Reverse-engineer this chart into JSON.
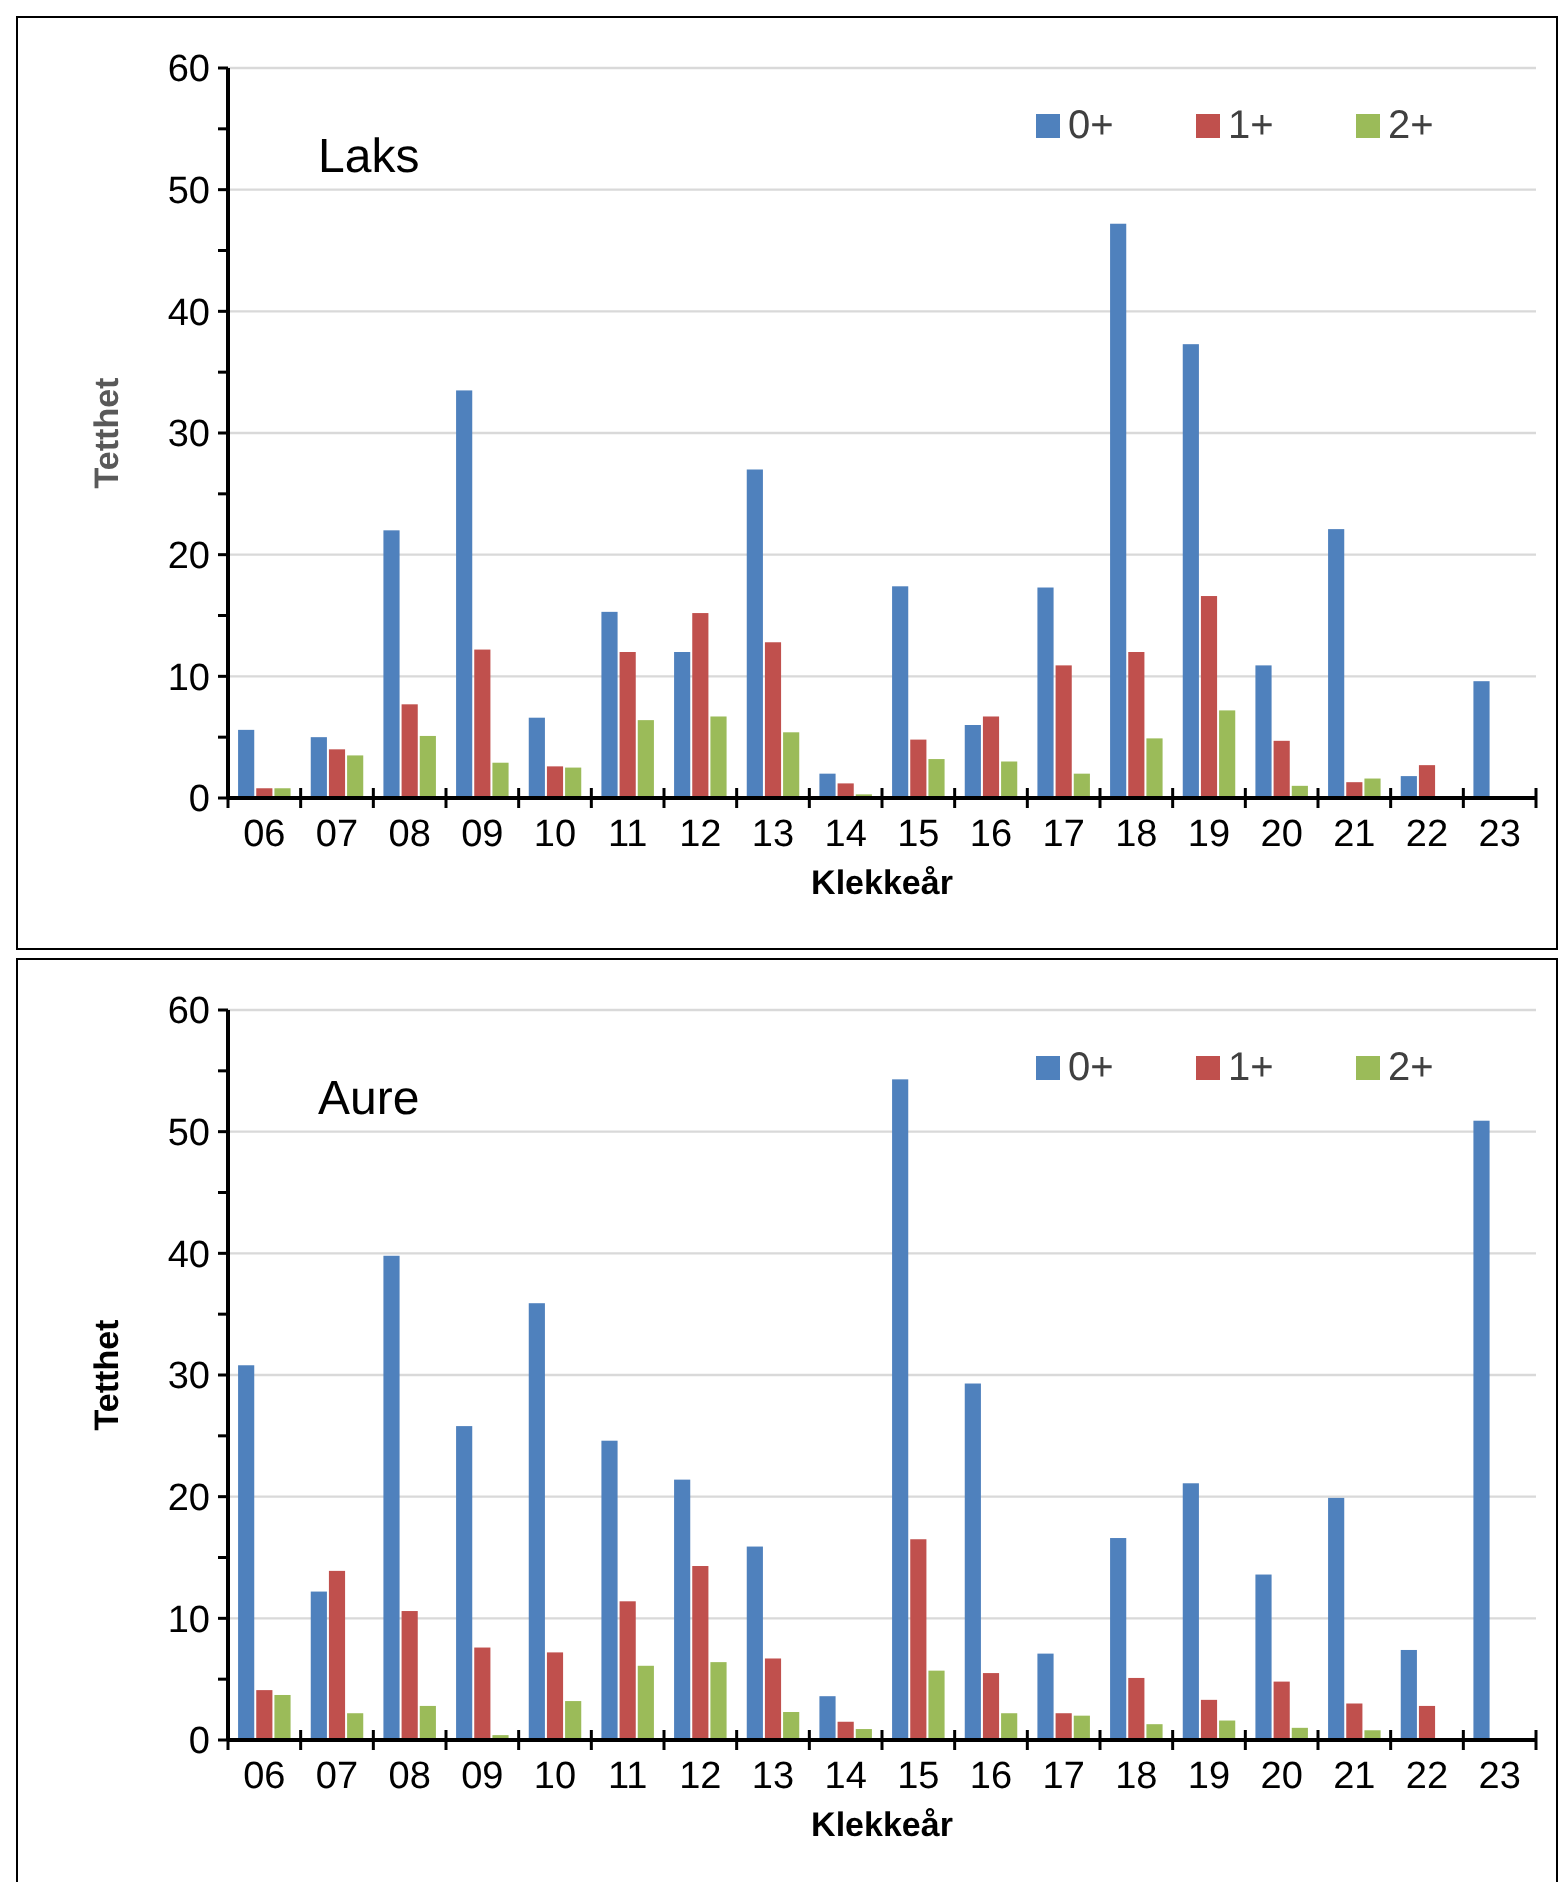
{
  "chart_data": [
    {
      "type": "bar",
      "title": "Laks",
      "xlabel": "Klekkeår",
      "ylabel": "Tetthet",
      "categories": [
        "06",
        "07",
        "08",
        "09",
        "10",
        "11",
        "12",
        "13",
        "14",
        "15",
        "16",
        "17",
        "18",
        "19",
        "20",
        "21",
        "22",
        "23"
      ],
      "series": [
        {
          "name": "0+",
          "color": "#4f81bd",
          "values": [
            5.6,
            5.0,
            22,
            33.5,
            6.6,
            15.3,
            12.0,
            27,
            2.0,
            17.4,
            6.0,
            17.3,
            47.2,
            37.3,
            10.9,
            22.1,
            1.8,
            9.6
          ]
        },
        {
          "name": "1+",
          "color": "#c0504d",
          "values": [
            0.8,
            4.0,
            7.7,
            12.2,
            2.6,
            12.0,
            15.2,
            12.8,
            1.2,
            4.8,
            6.7,
            10.9,
            12.0,
            16.6,
            4.7,
            1.3,
            2.7,
            null
          ]
        },
        {
          "name": "2+",
          "color": "#9bbb59",
          "values": [
            0.8,
            3.5,
            5.1,
            2.9,
            2.5,
            6.4,
            6.7,
            5.4,
            0.3,
            3.2,
            3.0,
            2.0,
            4.9,
            7.2,
            1.0,
            1.6,
            null,
            null
          ]
        }
      ],
      "ylim": [
        0,
        60
      ],
      "yticks": [
        0,
        {
          "value": 5,
          "label": null
        },
        10,
        {
          "value": 15,
          "label": null
        },
        20,
        {
          "value": 25,
          "label": null
        },
        30,
        {
          "value": 35,
          "label": null
        },
        40,
        {
          "value": 45,
          "label": null
        },
        50,
        {
          "value": 55,
          "label": null
        },
        60
      ],
      "grid": "y",
      "legend": "top right"
    },
    {
      "type": "bar",
      "title": "Aure",
      "xlabel": "Klekkeår",
      "ylabel": "Tetthet",
      "categories": [
        "06",
        "07",
        "08",
        "09",
        "10",
        "11",
        "12",
        "13",
        "14",
        "15",
        "16",
        "17",
        "18",
        "19",
        "20",
        "21",
        "22",
        "23"
      ],
      "series": [
        {
          "name": "0+",
          "color": "#4f81bd",
          "values": [
            30.8,
            12.2,
            39.8,
            25.8,
            35.9,
            24.6,
            21.4,
            15.9,
            3.6,
            54.3,
            29.3,
            7.1,
            16.6,
            21.1,
            13.6,
            19.9,
            7.4,
            50.9
          ]
        },
        {
          "name": "1+",
          "color": "#c0504d",
          "values": [
            4.1,
            13.9,
            10.6,
            7.6,
            7.2,
            11.4,
            14.3,
            6.7,
            1.5,
            16.5,
            5.5,
            2.2,
            5.1,
            3.3,
            4.8,
            3.0,
            2.8,
            null
          ]
        },
        {
          "name": "2+",
          "color": "#9bbb59",
          "values": [
            3.7,
            2.2,
            2.8,
            0.4,
            3.2,
            6.1,
            6.4,
            2.3,
            0.9,
            5.7,
            2.2,
            2.0,
            1.3,
            1.6,
            1.0,
            0.8,
            null,
            null
          ]
        }
      ],
      "ylim": [
        0,
        60
      ],
      "yticks": [
        0,
        {
          "value": 5,
          "label": null
        },
        10,
        {
          "value": 15,
          "label": null
        },
        20,
        {
          "value": 25,
          "label": null
        },
        30,
        {
          "value": 35,
          "label": null
        },
        40,
        {
          "value": 45,
          "label": null
        },
        50,
        {
          "value": 55,
          "label": null
        },
        60
      ],
      "grid": "y",
      "legend": "top right"
    }
  ]
}
